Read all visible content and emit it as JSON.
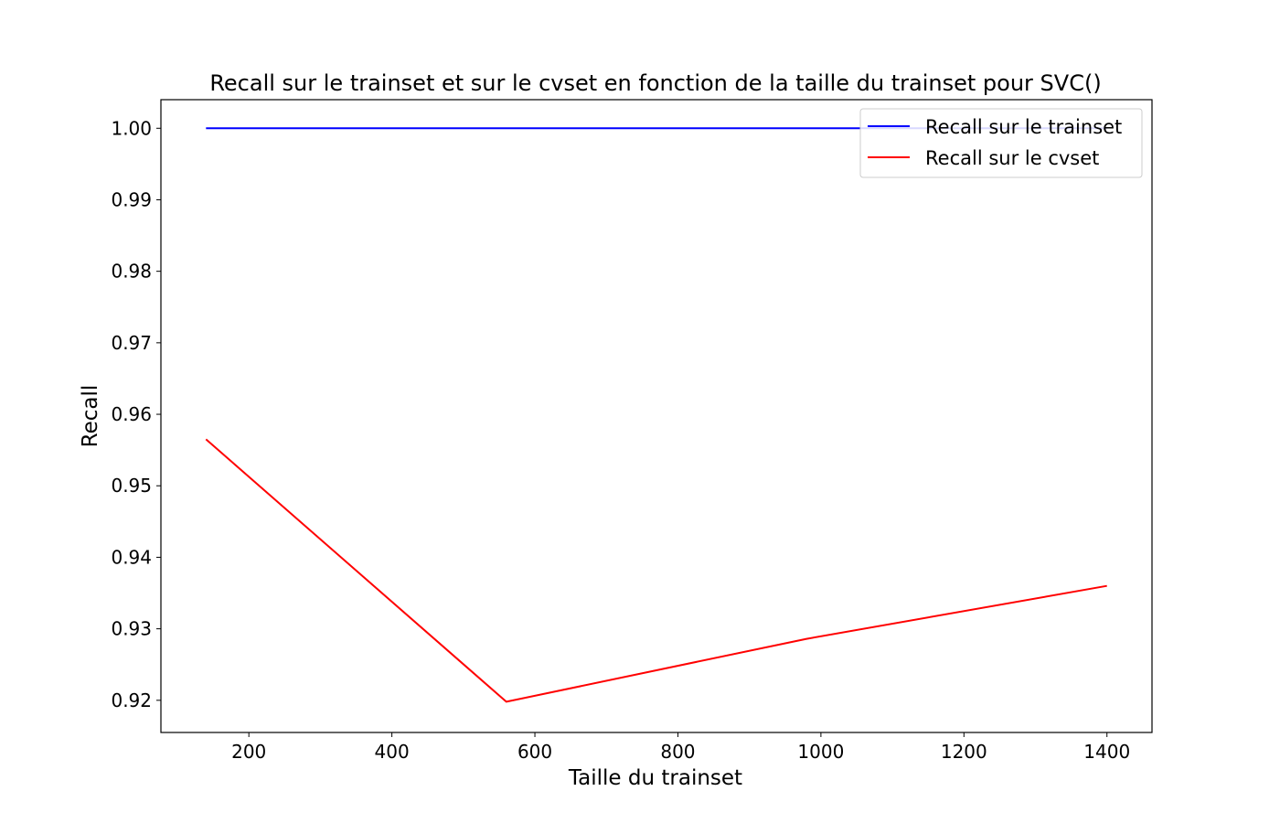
{
  "chart_data": {
    "type": "line",
    "title": "Recall sur le trainset et sur le cvset en fonction de la taille du trainset pour SVC()",
    "xlabel": "Taille du trainset",
    "ylabel": "Recall",
    "x": [
      140,
      560,
      980,
      1400
    ],
    "series": [
      {
        "name": "Recall sur le trainset",
        "color": "#0000ff",
        "values": [
          1.0,
          1.0,
          1.0,
          1.0
        ]
      },
      {
        "name": "Recall sur le cvset",
        "color": "#ff0000",
        "values": [
          0.9565,
          0.9198,
          0.9286,
          0.936
        ]
      }
    ],
    "xlim": [
      77,
      1463
    ],
    "ylim": [
      0.9155,
      1.004
    ],
    "xticks": [
      200,
      400,
      600,
      800,
      1000,
      1200,
      1400
    ],
    "xtick_labels": [
      "200",
      "400",
      "600",
      "800",
      "1000",
      "1200",
      "1400"
    ],
    "yticks": [
      0.92,
      0.93,
      0.94,
      0.95,
      0.96,
      0.97,
      0.98,
      0.99,
      1.0
    ],
    "ytick_labels": [
      "0.92",
      "0.93",
      "0.94",
      "0.95",
      "0.96",
      "0.97",
      "0.98",
      "0.99",
      "1.00"
    ],
    "grid": false,
    "legend_position": "top-right"
  }
}
